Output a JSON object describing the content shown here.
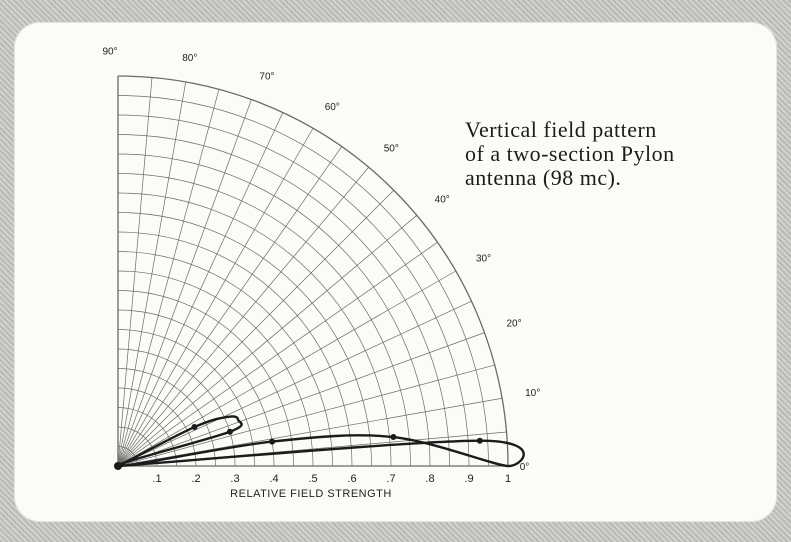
{
  "chart_data": {
    "type": "polar-line",
    "title": [
      "Vertical field pattern",
      "of a two-section Pylon",
      "antenna (98 mc)."
    ],
    "xlabel": "RELATIVE FIELD STRENGTH",
    "radial_ticks": [
      ".1",
      ".2",
      ".3",
      ".4",
      ".5",
      ".6",
      ".7",
      ".8",
      ".9",
      "1"
    ],
    "angle_ticks": [
      {
        "deg": 0,
        "label": "0°"
      },
      {
        "deg": 10,
        "label": "10°"
      },
      {
        "deg": 20,
        "label": "20°"
      },
      {
        "deg": 30,
        "label": "30°"
      },
      {
        "deg": 40,
        "label": "40°"
      },
      {
        "deg": 50,
        "label": "50°"
      },
      {
        "deg": 60,
        "label": "60°"
      },
      {
        "deg": 70,
        "label": "70°"
      },
      {
        "deg": 80,
        "label": "80°"
      },
      {
        "deg": 90,
        "label": "90°"
      }
    ],
    "rlim": [
      0,
      1
    ],
    "angle_range_deg": [
      0,
      90
    ],
    "pattern_points": [
      {
        "r": 0.0,
        "deg": 0
      },
      {
        "r": 0.93,
        "deg": 4
      },
      {
        "r": 1.0,
        "deg": 0
      },
      {
        "r": 0.71,
        "deg": 6
      },
      {
        "r": 0.4,
        "deg": 9
      },
      {
        "r": 0.0,
        "deg": 0
      },
      {
        "r": 0.3,
        "deg": 17
      },
      {
        "r": 0.33,
        "deg": 21
      },
      {
        "r": 0.31,
        "deg": 24
      },
      {
        "r": 0.22,
        "deg": 27
      },
      {
        "r": 0.0,
        "deg": 0
      }
    ],
    "marked_points": [
      {
        "r": 0.93,
        "deg": 4
      },
      {
        "r": 0.71,
        "deg": 6
      },
      {
        "r": 0.4,
        "deg": 9
      },
      {
        "r": 0.3,
        "deg": 17
      },
      {
        "r": 0.22,
        "deg": 27
      },
      {
        "r": 0.0,
        "deg": 0
      }
    ],
    "grid": true
  }
}
